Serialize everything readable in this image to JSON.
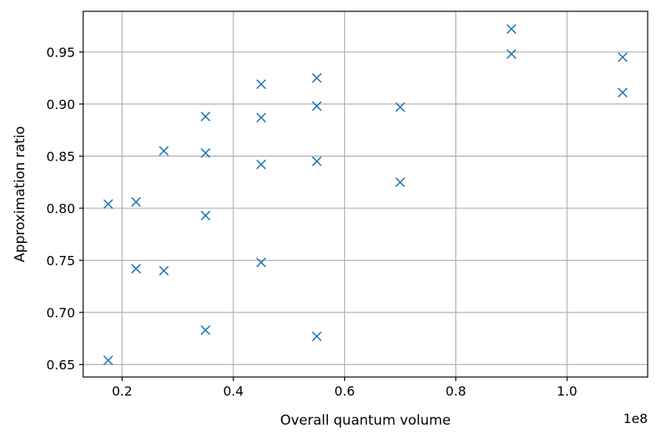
{
  "chart_data": {
    "type": "scatter",
    "xlabel": "Overall quantum volume",
    "ylabel": "Approximation ratio",
    "x_offset_text": "1e8",
    "x_scale_factor": 100000000,
    "xlim": [
      0.13,
      1.145
    ],
    "ylim": [
      0.638,
      0.989
    ],
    "x_ticks": [
      0.2,
      0.4,
      0.6,
      0.8,
      1.0
    ],
    "x_tick_labels": [
      "0.2",
      "0.4",
      "0.6",
      "0.8",
      "1.0"
    ],
    "y_ticks": [
      0.65,
      0.7,
      0.75,
      0.8,
      0.85,
      0.9,
      0.95
    ],
    "y_tick_labels": [
      "0.65",
      "0.70",
      "0.75",
      "0.80",
      "0.85",
      "0.90",
      "0.95"
    ],
    "grid": true,
    "marker": "x",
    "marker_color": "#1f77b4",
    "points": [
      {
        "x": 0.175,
        "y": 0.804
      },
      {
        "x": 0.175,
        "y": 0.654
      },
      {
        "x": 0.225,
        "y": 0.806
      },
      {
        "x": 0.225,
        "y": 0.742
      },
      {
        "x": 0.275,
        "y": 0.855
      },
      {
        "x": 0.275,
        "y": 0.74
      },
      {
        "x": 0.35,
        "y": 0.888
      },
      {
        "x": 0.35,
        "y": 0.853
      },
      {
        "x": 0.35,
        "y": 0.793
      },
      {
        "x": 0.35,
        "y": 0.683
      },
      {
        "x": 0.45,
        "y": 0.919
      },
      {
        "x": 0.45,
        "y": 0.887
      },
      {
        "x": 0.45,
        "y": 0.842
      },
      {
        "x": 0.45,
        "y": 0.748
      },
      {
        "x": 0.55,
        "y": 0.925
      },
      {
        "x": 0.55,
        "y": 0.898
      },
      {
        "x": 0.55,
        "y": 0.845
      },
      {
        "x": 0.55,
        "y": 0.677
      },
      {
        "x": 0.7,
        "y": 0.897
      },
      {
        "x": 0.7,
        "y": 0.825
      },
      {
        "x": 0.9,
        "y": 0.972
      },
      {
        "x": 0.9,
        "y": 0.948
      },
      {
        "x": 1.1,
        "y": 0.945
      },
      {
        "x": 1.1,
        "y": 0.911
      }
    ]
  }
}
